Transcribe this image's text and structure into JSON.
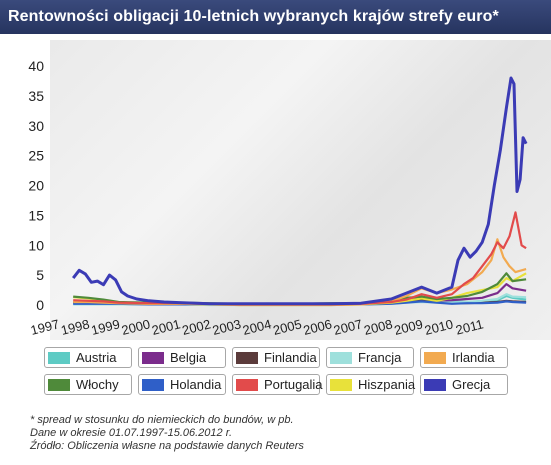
{
  "title": "Rentowności obligacji 10-letnich wybranych krajów strefy euro*",
  "chart_data": {
    "type": "line",
    "title": "Rentowności obligacji 10-letnich wybranych krajów strefy euro*",
    "xlabel": "",
    "ylabel": "",
    "ylim": [
      0,
      40
    ],
    "y_ticks": [
      "0",
      "5",
      "10",
      "15",
      "20",
      "25",
      "30",
      "35",
      "40"
    ],
    "x_ticks": [
      "1997",
      "1998",
      "1999",
      "2000",
      "2001",
      "2002",
      "2003",
      "2004",
      "2005",
      "2006",
      "2007",
      "2008",
      "2009",
      "2010",
      "2011"
    ],
    "grid": false,
    "legend_position": "bottom",
    "series": [
      {
        "name": "Austria",
        "color": "#5ecbc4",
        "x": [
          1997.5,
          1998.0,
          1998.5,
          1999.0,
          2000.0,
          2001.0,
          2002.0,
          2003.0,
          2004.0,
          2005.0,
          2006.0,
          2007.0,
          2008.0,
          2008.5,
          2009.0,
          2009.5,
          2010.0,
          2010.5,
          2011.0,
          2011.5,
          2011.8,
          2012.0,
          2012.45
        ],
        "y": [
          0.3,
          0.3,
          0.3,
          0.3,
          0.2,
          0.3,
          0.2,
          0.1,
          0.1,
          0.1,
          0.1,
          0.2,
          0.4,
          0.8,
          1.2,
          0.9,
          0.6,
          0.5,
          0.6,
          0.8,
          1.5,
          1.2,
          0.9
        ]
      },
      {
        "name": "Belgia",
        "color": "#7b2c8c",
        "x": [
          1997.5,
          1998.0,
          1998.5,
          1999.0,
          2000.0,
          2001.0,
          2002.0,
          2003.0,
          2004.0,
          2005.0,
          2006.0,
          2007.0,
          2008.0,
          2008.5,
          2009.0,
          2009.5,
          2010.0,
          2010.5,
          2011.0,
          2011.5,
          2011.8,
          2012.0,
          2012.45
        ],
        "y": [
          0.4,
          0.4,
          0.4,
          0.4,
          0.3,
          0.3,
          0.2,
          0.2,
          0.1,
          0.1,
          0.1,
          0.2,
          0.5,
          0.9,
          1.1,
          0.7,
          0.8,
          1.0,
          1.2,
          2.0,
          3.5,
          2.8,
          2.4
        ]
      },
      {
        "name": "Finlandia",
        "color": "#5b3b3b",
        "x": [
          1997.5,
          1998.0,
          1998.5,
          1999.0,
          2000.0,
          2001.0,
          2002.0,
          2003.0,
          2004.0,
          2005.0,
          2006.0,
          2007.0,
          2008.0,
          2008.5,
          2009.0,
          2009.5,
          2010.0,
          2010.5,
          2011.0,
          2011.5,
          2011.8,
          2012.0,
          2012.45
        ],
        "y": [
          0.3,
          0.3,
          0.3,
          0.2,
          0.2,
          0.2,
          0.1,
          0.1,
          0.1,
          0.1,
          0.1,
          0.1,
          0.3,
          0.5,
          0.8,
          0.5,
          0.3,
          0.3,
          0.4,
          0.5,
          0.7,
          0.6,
          0.5
        ]
      },
      {
        "name": "Francja",
        "color": "#9ee0dc",
        "x": [
          1997.5,
          1998.0,
          1998.5,
          1999.0,
          2000.0,
          2001.0,
          2002.0,
          2003.0,
          2004.0,
          2005.0,
          2006.0,
          2007.0,
          2008.0,
          2008.5,
          2009.0,
          2009.5,
          2010.0,
          2010.5,
          2011.0,
          2011.5,
          2011.8,
          2012.0,
          2012.45
        ],
        "y": [
          0.1,
          0.1,
          0.1,
          0.1,
          0.1,
          0.1,
          0.0,
          0.0,
          0.0,
          0.0,
          0.0,
          0.1,
          0.2,
          0.4,
          0.5,
          0.4,
          0.4,
          0.5,
          0.7,
          1.0,
          1.8,
          1.4,
          1.3
        ]
      },
      {
        "name": "Irlandia",
        "color": "#f2aa50",
        "x": [
          1997.5,
          1998.0,
          1998.5,
          1999.0,
          2000.0,
          2001.0,
          2002.0,
          2003.0,
          2004.0,
          2005.0,
          2006.0,
          2007.0,
          2008.0,
          2008.5,
          2009.0,
          2009.5,
          2010.0,
          2010.5,
          2011.0,
          2011.3,
          2011.5,
          2011.7,
          2011.9,
          2012.1,
          2012.45
        ],
        "y": [
          0.5,
          0.5,
          0.4,
          0.3,
          0.2,
          0.2,
          0.1,
          0.0,
          0.0,
          0.0,
          0.0,
          0.1,
          0.6,
          1.5,
          2.8,
          2.0,
          2.6,
          3.5,
          5.5,
          7.5,
          11.0,
          8.0,
          6.5,
          5.5,
          6.0
        ]
      },
      {
        "name": "Włochy",
        "color": "#4f8a3a",
        "x": [
          1997.5,
          1998.0,
          1998.5,
          1999.0,
          2000.0,
          2001.0,
          2002.0,
          2003.0,
          2004.0,
          2005.0,
          2006.0,
          2007.0,
          2008.0,
          2008.5,
          2009.0,
          2009.5,
          2010.0,
          2010.5,
          2011.0,
          2011.5,
          2011.8,
          2012.0,
          2012.45
        ],
        "y": [
          1.4,
          1.2,
          0.9,
          0.5,
          0.4,
          0.4,
          0.3,
          0.2,
          0.2,
          0.2,
          0.3,
          0.3,
          0.8,
          1.2,
          1.4,
          1.0,
          1.2,
          1.5,
          2.2,
          3.5,
          5.3,
          4.0,
          4.3
        ]
      },
      {
        "name": "Holandia",
        "color": "#2f5fc8",
        "x": [
          1997.5,
          1998.0,
          1998.5,
          1999.0,
          2000.0,
          2001.0,
          2002.0,
          2003.0,
          2004.0,
          2005.0,
          2006.0,
          2007.0,
          2008.0,
          2008.5,
          2009.0,
          2009.5,
          2010.0,
          2010.5,
          2011.0,
          2011.5,
          2011.8,
          2012.0,
          2012.45
        ],
        "y": [
          0.2,
          0.2,
          0.2,
          0.2,
          0.1,
          0.1,
          0.1,
          0.1,
          0.1,
          0.1,
          0.1,
          0.1,
          0.2,
          0.4,
          0.6,
          0.4,
          0.2,
          0.3,
          0.3,
          0.4,
          0.6,
          0.5,
          0.4
        ]
      },
      {
        "name": "Portugalia",
        "color": "#e24b4b",
        "x": [
          1997.5,
          1998.0,
          1998.5,
          1999.0,
          2000.0,
          2001.0,
          2002.0,
          2003.0,
          2004.0,
          2005.0,
          2006.0,
          2007.0,
          2008.0,
          2008.5,
          2009.0,
          2009.5,
          2010.0,
          2010.4,
          2010.7,
          2011.0,
          2011.3,
          2011.5,
          2011.7,
          2011.9,
          2012.1,
          2012.3,
          2012.45
        ],
        "y": [
          0.8,
          0.7,
          0.6,
          0.4,
          0.3,
          0.3,
          0.2,
          0.1,
          0.1,
          0.1,
          0.1,
          0.2,
          0.5,
          0.9,
          1.8,
          1.2,
          1.8,
          3.5,
          4.5,
          6.5,
          8.5,
          10.5,
          9.5,
          11.5,
          15.5,
          10.0,
          9.5
        ]
      },
      {
        "name": "Hiszpania",
        "color": "#e8e13a",
        "x": [
          1997.5,
          1998.0,
          1998.5,
          1999.0,
          2000.0,
          2001.0,
          2002.0,
          2003.0,
          2004.0,
          2005.0,
          2006.0,
          2007.0,
          2008.0,
          2008.5,
          2009.0,
          2009.5,
          2010.0,
          2010.5,
          2011.0,
          2011.5,
          2011.8,
          2012.0,
          2012.45
        ],
        "y": [
          1.3,
          1.1,
          0.8,
          0.4,
          0.2,
          0.2,
          0.1,
          0.0,
          0.0,
          0.0,
          0.0,
          0.1,
          0.4,
          0.7,
          1.1,
          0.7,
          1.2,
          2.0,
          2.5,
          3.0,
          4.5,
          4.0,
          5.3
        ]
      },
      {
        "name": "Grecja",
        "color": "#3b3bb5",
        "x": [
          1997.5,
          1997.7,
          1997.9,
          1998.1,
          1998.3,
          1998.5,
          1998.7,
          1998.9,
          1999.1,
          1999.3,
          1999.6,
          2000.0,
          2000.5,
          2001.0,
          2002.0,
          2003.0,
          2004.0,
          2005.0,
          2006.0,
          2007.0,
          2008.0,
          2008.5,
          2009.0,
          2009.5,
          2010.0,
          2010.2,
          2010.4,
          2010.6,
          2010.8,
          2011.0,
          2011.2,
          2011.4,
          2011.6,
          2011.8,
          2011.95,
          2012.05,
          2012.15,
          2012.25,
          2012.35,
          2012.45
        ],
        "y": [
          4.5,
          5.8,
          5.2,
          3.8,
          4.0,
          3.4,
          5.0,
          4.2,
          2.2,
          1.5,
          1.0,
          0.7,
          0.5,
          0.4,
          0.2,
          0.2,
          0.2,
          0.2,
          0.2,
          0.3,
          1.0,
          2.0,
          3.0,
          2.0,
          3.0,
          7.5,
          9.5,
          8.0,
          9.0,
          10.5,
          13.5,
          20.0,
          26.0,
          33.0,
          38.0,
          37.0,
          19.0,
          21.0,
          28.0,
          27.0
        ]
      }
    ]
  },
  "notes": [
    "* spread w stosunku do niemieckich do bundów, w pb.",
    "Dane w okresie 01.07.1997-15.06.2012 r.",
    "Źródło: Obliczenia własne na podstawie danych Reuters"
  ]
}
